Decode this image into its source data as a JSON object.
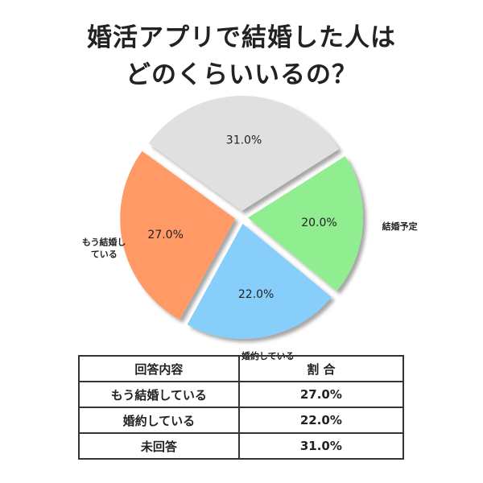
{
  "title": {
    "line1": "婚活アプリで結婚した人は",
    "line2": "どのくらいいるの？"
  },
  "chart_data": {
    "type": "pie",
    "slices": [
      {
        "label": "",
        "value": 31.0,
        "value_label": "31.0%",
        "color": "#e0e0e0"
      },
      {
        "label": "結婚予定",
        "value": 20.0,
        "value_label": "20.0%",
        "color": "#90ee90"
      },
      {
        "label": "婚約している",
        "value": 22.0,
        "value_label": "22.0%",
        "color": "#87cefa"
      },
      {
        "label": "もう結婚している",
        "label_lines": [
          "もう結婚し",
          "ている"
        ],
        "value": 27.0,
        "value_label": "27.0%",
        "color": "#ff9966"
      }
    ]
  },
  "table": {
    "headers": [
      "回答内容",
      "割 合"
    ],
    "rows": [
      [
        "もう結婚している",
        "27.0%"
      ],
      [
        "婚約している",
        "22.0%"
      ],
      [
        "未回答",
        "31.0%"
      ]
    ]
  }
}
